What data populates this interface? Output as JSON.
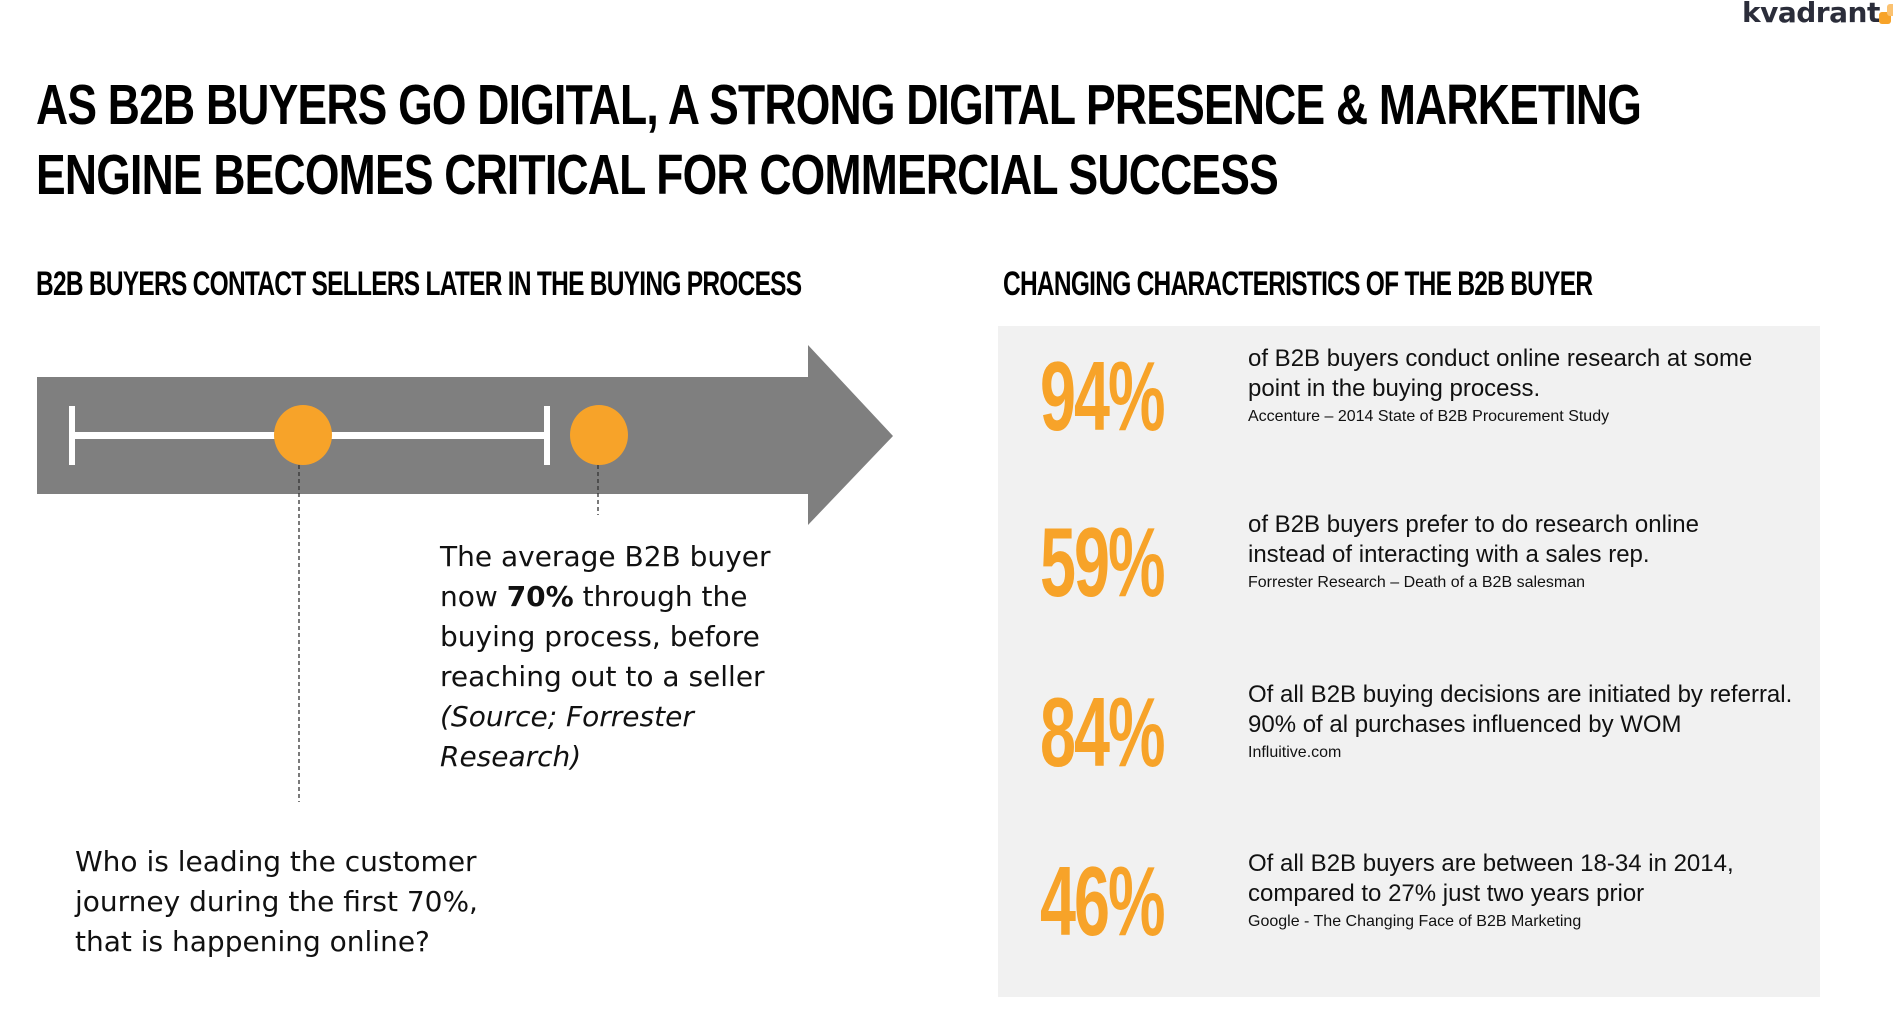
{
  "brand": {
    "name": "kvadrant",
    "accent_color": "#f7a329",
    "logo_text_color": "#2b2d3a"
  },
  "title": {
    "line1": "AS B2B BUYERS GO DIGITAL, A STRONG DIGITAL PRESENCE & MARKETING",
    "line2": "ENGINE BECOMES CRITICAL FOR COMMERCIAL SUCCESS"
  },
  "left": {
    "heading": "B2B BUYERS CONTACT SELLERS LATER IN THE BUYING PROCESS",
    "arrow_color": "#7f7f7f",
    "callout": {
      "prefix": "The average B2B buyer now ",
      "highlight": "70%",
      "suffix": " through the buying process, before reaching out to a seller",
      "source": "(Source; Forrester Research)"
    },
    "question": "Who is leading the customer journey during the first 70%, that is happening online?"
  },
  "right": {
    "heading": "CHANGING CHARACTERISTICS OF THE B2B BUYER",
    "panel_color": "#f1f1f1",
    "stats": [
      {
        "value": "94%",
        "line1": "of B2B buyers conduct online research at some",
        "line2": "point in the buying process.",
        "source": "Accenture – 2014 State of B2B Procurement Study"
      },
      {
        "value": "59%",
        "line1": "of B2B buyers prefer to do research online",
        "line2": "instead of interacting with a sales rep.",
        "source": "Forrester Research – Death of a B2B salesman"
      },
      {
        "value": "84%",
        "line1": "Of all B2B buying decisions are initiated by referral.",
        "line2": "90% of al purchases influenced by WOM",
        "source": "Influitive.com"
      },
      {
        "value": "46%",
        "line1": "Of all B2B buyers are between 18-34 in 2014,",
        "line2": "compared to 27% just two years prior",
        "source": "Google - The Changing Face of B2B Marketing"
      }
    ]
  }
}
